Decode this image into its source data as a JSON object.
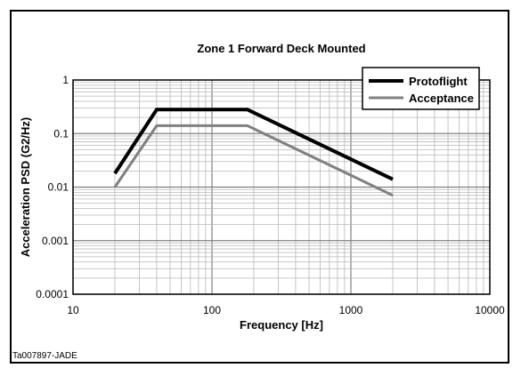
{
  "figure_ref": "Ta007897-JADE",
  "colors": {
    "protoflight": "#000000",
    "acceptance": "#808080",
    "grid": "#b8b8b8",
    "grid_major": "#808080",
    "axis": "#000000"
  },
  "chart_data": {
    "type": "line",
    "title": "Zone 1 Forward Deck Mounted",
    "xlabel": "Frequency [Hz]",
    "ylabel": "Acceleration PSD (G2/Hz)",
    "xscale": "log",
    "yscale": "log",
    "xlim": [
      10,
      10000
    ],
    "ylim": [
      0.0001,
      1
    ],
    "xticks": [
      "10",
      "100",
      "1000",
      "10000"
    ],
    "yticks": [
      "0.0001",
      "0.001",
      "0.01",
      "0.1",
      "1"
    ],
    "grid": true,
    "legend_position": "top-right",
    "series": [
      {
        "name": "Protoflight",
        "x": [
          20,
          40,
          180,
          2000
        ],
        "y": [
          0.018,
          0.28,
          0.28,
          0.014
        ]
      },
      {
        "name": "Acceptance",
        "x": [
          20,
          40,
          180,
          2000
        ],
        "y": [
          0.01,
          0.14,
          0.14,
          0.007
        ]
      }
    ]
  }
}
